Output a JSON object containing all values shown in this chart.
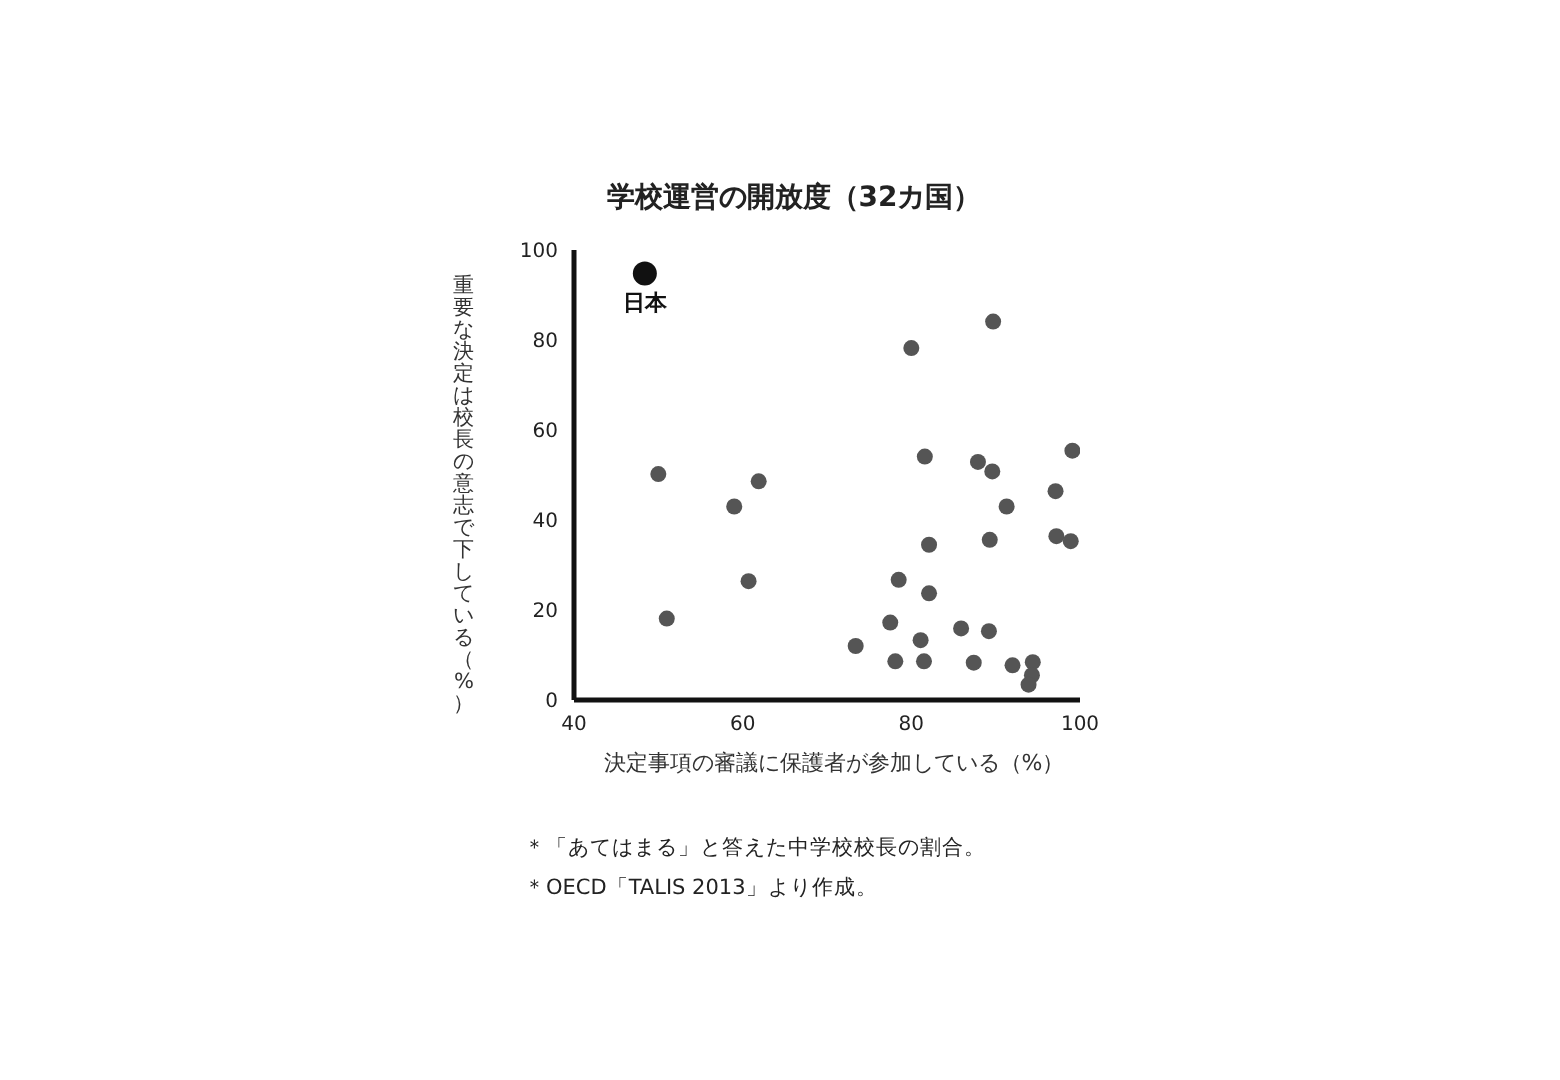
{
  "chart_data": {
    "type": "scatter",
    "title": "学校運営の開放度（32カ国）",
    "xlabel": "決定事項の審議に保護者が参加している（%）",
    "ylabel": "重要な決定は校長の意志で下している（%）",
    "annotations": [
      "＊「あてはまる」と答えた中学校校長の割合。",
      "＊OECD「TALIS 2013」より作成。"
    ],
    "xlim": [
      40,
      100
    ],
    "xticks": [
      40,
      60,
      80,
      100
    ],
    "ylim": [
      0,
      100
    ],
    "yticks": [
      0,
      20,
      40,
      60,
      80,
      100
    ],
    "grid": false,
    "legend": false,
    "marker": "circle",
    "series": [
      {
        "color": "#555555",
        "x": [
          89.7,
          80.0,
          99.1,
          81.6,
          87.9,
          89.6,
          50.0,
          61.9,
          97.1,
          59.0,
          91.3,
          82.1,
          89.3,
          97.2,
          98.9,
          78.5,
          60.7,
          82.1,
          51.0,
          77.5,
          85.9,
          89.2,
          81.1,
          73.4,
          78.1,
          81.5,
          87.4,
          92.0,
          94.4,
          94.3,
          93.9
        ],
        "values": [
          84.1,
          78.2,
          55.4,
          54.1,
          52.9,
          50.8,
          50.2,
          48.6,
          46.4,
          43.0,
          43.0,
          34.5,
          35.6,
          36.4,
          35.3,
          26.7,
          26.4,
          23.7,
          18.1,
          17.2,
          15.9,
          15.3,
          13.3,
          12.0,
          8.6,
          8.6,
          8.3,
          7.7,
          8.4,
          5.5,
          3.4
        ]
      },
      {
        "name": "日本",
        "color": "#111111",
        "x": [
          48.4
        ],
        "values": [
          94.8
        ]
      }
    ]
  }
}
